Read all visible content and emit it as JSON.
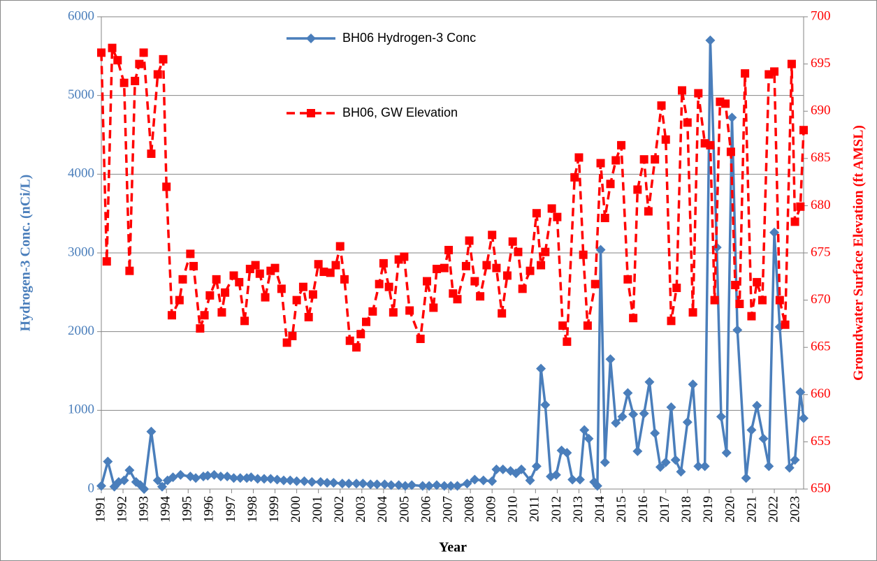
{
  "chart_data": {
    "type": "line",
    "x_label": "Year",
    "y_label": "Hydrogen-3 Conc. (nCi/L)",
    "y2_label": "Groundwater Surface Elevation (ft AMSL)",
    "xlim": [
      1991,
      2023.35
    ],
    "xticks": [
      1991,
      1992,
      1993,
      1994,
      1995,
      1996,
      1997,
      1998,
      1999,
      2000,
      2001,
      2002,
      2003,
      2004,
      2005,
      2006,
      2007,
      2008,
      2009,
      2010,
      2011,
      2012,
      2013,
      2014,
      2015,
      2016,
      2017,
      2018,
      2019,
      2020,
      2021,
      2022,
      2023
    ],
    "ylim": [
      0,
      6000
    ],
    "yticks": [
      0,
      1000,
      2000,
      3000,
      4000,
      5000,
      6000
    ],
    "y2lim": [
      650,
      700
    ],
    "y2ticks": [
      650,
      655,
      660,
      665,
      670,
      675,
      680,
      685,
      690,
      695,
      700
    ],
    "grid": true,
    "series": [
      {
        "name": "BH06 Hydrogen-3 Conc",
        "color": "#4a7ebb",
        "marker": "diamond",
        "line_style": "solid",
        "x": [
          1991.0,
          1991.3,
          1991.6,
          1991.8,
          1992.05,
          1992.3,
          1992.6,
          1992.8,
          1992.97,
          1993.3,
          1993.6,
          1993.8,
          1994.05,
          1994.3,
          1994.65,
          1995.1,
          1995.35,
          1995.7,
          1995.9,
          1996.2,
          1996.5,
          1996.8,
          1997.1,
          1997.4,
          1997.7,
          1997.9,
          1998.2,
          1998.5,
          1998.8,
          1999.1,
          1999.4,
          1999.7,
          2000.0,
          2000.35,
          2000.7,
          2001.1,
          2001.4,
          2001.7,
          2002.1,
          2002.4,
          2002.75,
          2003.05,
          2003.4,
          2003.7,
          2004.05,
          2004.35,
          2004.7,
          2005.0,
          2005.3,
          2005.8,
          2006.1,
          2006.45,
          2006.8,
          2007.1,
          2007.4,
          2007.85,
          2008.2,
          2008.6,
          2009.0,
          2009.2,
          2009.5,
          2009.85,
          2010.1,
          2010.35,
          2010.75,
          2011.05,
          2011.25,
          2011.45,
          2011.7,
          2011.95,
          2012.2,
          2012.45,
          2012.7,
          2013.05,
          2013.25,
          2013.45,
          2013.7,
          2013.85,
          2014.0,
          2014.2,
          2014.45,
          2014.7,
          2015.0,
          2015.25,
          2015.5,
          2015.7,
          2016.0,
          2016.25,
          2016.5,
          2016.75,
          2017.0,
          2017.25,
          2017.45,
          2017.7,
          2018.0,
          2018.25,
          2018.5,
          2018.8,
          2019.05,
          2019.35,
          2019.55,
          2019.8,
          2020.05,
          2020.3,
          2020.7,
          2020.95,
          2021.2,
          2021.5,
          2021.75,
          2022.0,
          2022.25,
          2022.7,
          2022.95,
          2023.2,
          2023.35
        ],
        "values": [
          40,
          350,
          30,
          90,
          110,
          240,
          90,
          50,
          0,
          730,
          110,
          30,
          110,
          150,
          180,
          160,
          140,
          160,
          170,
          180,
          160,
          160,
          140,
          140,
          140,
          150,
          130,
          130,
          130,
          120,
          110,
          110,
          100,
          100,
          90,
          90,
          80,
          80,
          70,
          70,
          70,
          70,
          60,
          60,
          60,
          50,
          50,
          40,
          50,
          40,
          40,
          50,
          40,
          40,
          40,
          70,
          120,
          110,
          100,
          250,
          250,
          230,
          200,
          250,
          110,
          290,
          1530,
          1070,
          160,
          180,
          490,
          460,
          120,
          120,
          750,
          640,
          90,
          40,
          3040,
          340,
          1650,
          840,
          920,
          1220,
          950,
          480,
          960,
          1360,
          710,
          280,
          340,
          1040,
          370,
          220,
          850,
          1330,
          290,
          290,
          5700,
          3070,
          920,
          460,
          4720,
          2020,
          140,
          750,
          1060,
          640,
          290,
          3260,
          2060,
          270,
          370,
          1230,
          900
        ]
      },
      {
        "name": "BH06, GW Elevation",
        "color": "#ff0000",
        "marker": "square",
        "line_style": "dashed",
        "axis": "y2",
        "x": [
          1991.0,
          1991.25,
          1991.5,
          1991.75,
          1992.05,
          1992.3,
          1992.55,
          1992.75,
          1992.95,
          1993.3,
          1993.6,
          1993.85,
          1994.0,
          1994.25,
          1994.6,
          1994.75,
          1995.1,
          1995.25,
          1995.55,
          1995.75,
          1996.0,
          1996.3,
          1996.55,
          1996.7,
          1997.1,
          1997.35,
          1997.6,
          1997.85,
          1998.1,
          1998.3,
          1998.55,
          1998.8,
          1999.0,
          1999.3,
          1999.55,
          1999.8,
          2000.0,
          2000.3,
          2000.55,
          2000.75,
          2001.0,
          2001.25,
          2001.55,
          2001.8,
          2002.0,
          2002.2,
          2002.45,
          2002.75,
          2002.95,
          2003.2,
          2003.5,
          2003.8,
          2004.0,
          2004.25,
          2004.45,
          2004.7,
          2004.95,
          2005.2,
          2005.7,
          2006.0,
          2006.3,
          2006.45,
          2006.8,
          2007.0,
          2007.2,
          2007.4,
          2007.8,
          2007.95,
          2008.2,
          2008.45,
          2008.75,
          2009.0,
          2009.2,
          2009.45,
          2009.7,
          2009.95,
          2010.2,
          2010.4,
          2010.75,
          2011.05,
          2011.25,
          2011.45,
          2011.75,
          2012.0,
          2012.25,
          2012.45,
          2012.8,
          2013.0,
          2013.2,
          2013.4,
          2013.75,
          2014.0,
          2014.2,
          2014.45,
          2014.7,
          2014.95,
          2015.25,
          2015.5,
          2015.7,
          2016.0,
          2016.2,
          2016.5,
          2016.8,
          2017.0,
          2017.25,
          2017.5,
          2017.75,
          2018.0,
          2018.25,
          2018.5,
          2018.8,
          2019.05,
          2019.25,
          2019.5,
          2019.75,
          2020.0,
          2020.2,
          2020.4,
          2020.65,
          2020.95,
          2021.2,
          2021.45,
          2021.75,
          2022.0,
          2022.25,
          2022.5,
          2022.8,
          2022.95,
          2023.2,
          2023.35
        ],
        "values": [
          696.2,
          674.1,
          696.7,
          695.4,
          693.0,
          673.1,
          693.2,
          695.0,
          696.2,
          685.5,
          693.9,
          695.5,
          682.0,
          668.4,
          670.0,
          672.2,
          674.9,
          673.6,
          667.0,
          668.4,
          670.5,
          672.2,
          668.7,
          670.8,
          672.6,
          671.9,
          667.8,
          673.3,
          673.7,
          672.8,
          670.3,
          673.1,
          673.4,
          671.2,
          665.5,
          666.2,
          670.0,
          671.4,
          668.2,
          670.6,
          673.8,
          673.0,
          672.9,
          673.7,
          675.7,
          672.2,
          665.7,
          665.0,
          666.4,
          667.7,
          668.8,
          671.7,
          673.9,
          671.4,
          668.7,
          674.3,
          674.6,
          668.9,
          665.9,
          672.0,
          669.2,
          673.3,
          673.4,
          675.3,
          670.7,
          670.1,
          673.6,
          676.3,
          672.0,
          670.4,
          673.7,
          676.9,
          673.4,
          668.6,
          672.6,
          676.2,
          675.1,
          671.2,
          673.1,
          679.2,
          673.7,
          675.1,
          679.7,
          678.8,
          667.3,
          665.6,
          683.0,
          685.1,
          674.8,
          667.3,
          671.7,
          684.5,
          678.7,
          682.3,
          684.8,
          686.4,
          672.2,
          668.1,
          681.7,
          684.9,
          679.4,
          684.9,
          690.6,
          687.0,
          667.8,
          671.3,
          692.2,
          688.8,
          668.7,
          691.9,
          686.6,
          686.4,
          670.0,
          691.0,
          690.8,
          685.7,
          671.6,
          669.6,
          694.0,
          668.3,
          671.9,
          670.0,
          693.9,
          694.2,
          670.0,
          667.4,
          695.0,
          678.3,
          679.9,
          688.0
        ]
      }
    ]
  }
}
